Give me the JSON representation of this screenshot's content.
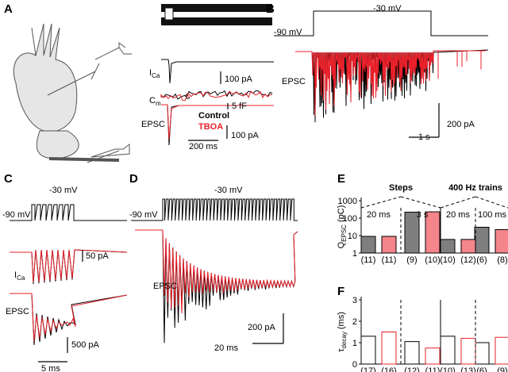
{
  "panels": {
    "A": {
      "letter": "A",
      "ica": {
        "main": "I",
        "sub": "Ca"
      },
      "cm": {
        "main": "C",
        "sub": "m"
      },
      "epsc": "EPSC",
      "legend": [
        "Control",
        "TBOA"
      ],
      "scales": [
        "100 pA",
        "5 fF",
        "100 pA",
        "200 ms"
      ]
    },
    "B": {
      "letter": "B",
      "step": "-30 mV",
      "hold": "-90 mV",
      "epsc": "EPSC",
      "scales": [
        "200 pA",
        "1 s"
      ]
    },
    "C": {
      "letter": "C",
      "step": "-30 mV",
      "hold": "-90 mV",
      "ica": {
        "main": "I",
        "sub": "Ca"
      },
      "epsc": "EPSC",
      "scales": [
        "50 pA",
        "500 pA",
        "5 ms"
      ]
    },
    "D": {
      "letter": "D",
      "step": "-30 mV",
      "hold": "-90 mV",
      "epsc": "EPSC",
      "scales": [
        "200 pA",
        "20 ms"
      ]
    }
  },
  "chart_data": [
    {
      "type": "bar",
      "letter": "E",
      "groups": [
        "Steps",
        "400 Hz trains"
      ],
      "categories": [
        "20 ms",
        "3 s",
        "20 ms",
        "100 ms"
      ],
      "ylabel": {
        "main": "Q",
        "sub": "EPSC",
        "unit": " (pC)"
      },
      "log_scale": true,
      "ylim": [
        1,
        1000
      ],
      "yticks": [
        1,
        10,
        100,
        1000
      ],
      "series": [
        {
          "color": "#7f7f7f",
          "values": [
            9,
            220,
            6,
            30
          ],
          "n": [
            "(11)",
            "(9)",
            "(10)",
            "(6)"
          ]
        },
        {
          "color": "#f4858a",
          "values": [
            9,
            230,
            6,
            22
          ],
          "n": [
            "(11)",
            "(10)",
            "(12)",
            "(8)"
          ]
        }
      ]
    },
    {
      "type": "bar",
      "letter": "F",
      "ylabel": {
        "main": "τ",
        "sub": "decay",
        "unit": " (ms)"
      },
      "log_scale": false,
      "ylim": [
        0,
        3
      ],
      "yticks": [
        0,
        1,
        2,
        3
      ],
      "series": [
        {
          "color": "#000000",
          "values": [
            1.3,
            1.05,
            1.3,
            1.0
          ],
          "n": [
            "(17)",
            "(12)",
            "(10)",
            "(6)"
          ]
        },
        {
          "color": "#e8202a",
          "values": [
            1.5,
            0.75,
            1.2,
            1.25
          ],
          "n": [
            "(16)",
            "(11)",
            "(13)",
            "(9)"
          ]
        }
      ]
    }
  ]
}
